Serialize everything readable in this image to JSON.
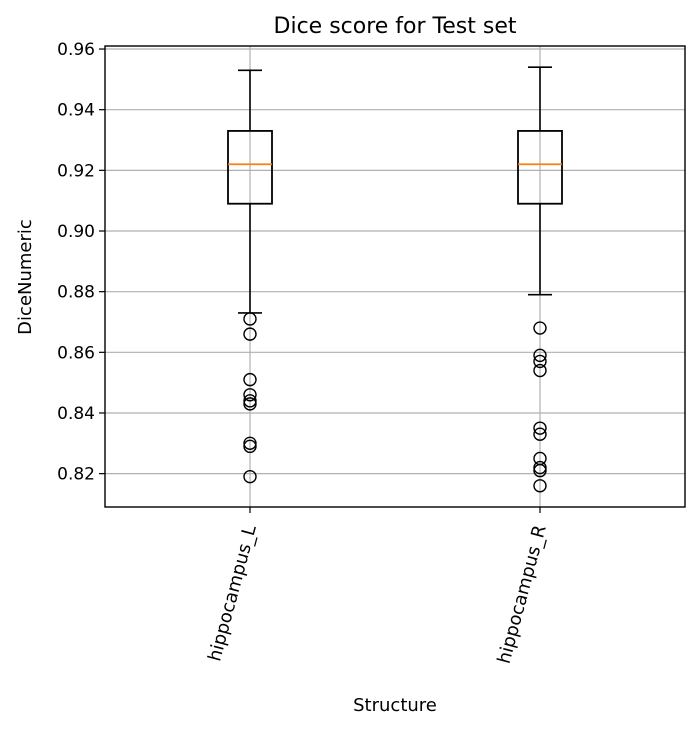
{
  "chart_data": {
    "type": "box",
    "title": "Dice score for Test set",
    "xlabel": "Structure",
    "ylabel": "DiceNumeric",
    "ylim": [
      0.809,
      0.961
    ],
    "yticks": [
      0.82,
      0.84,
      0.86,
      0.88,
      0.9,
      0.92,
      0.94,
      0.96
    ],
    "ytick_labels": [
      "0.82",
      "0.84",
      "0.86",
      "0.88",
      "0.90",
      "0.92",
      "0.94",
      "0.96"
    ],
    "grid": true,
    "categories": [
      "hippocampus_L",
      "hippocampus_R"
    ],
    "boxes": [
      {
        "name": "hippocampus_L",
        "whisker_low": 0.873,
        "q1": 0.909,
        "median": 0.922,
        "q3": 0.933,
        "whisker_high": 0.953,
        "outliers": [
          0.871,
          0.866,
          0.851,
          0.846,
          0.844,
          0.843,
          0.83,
          0.829,
          0.819
        ]
      },
      {
        "name": "hippocampus_R",
        "whisker_low": 0.879,
        "q1": 0.909,
        "median": 0.922,
        "q3": 0.933,
        "whisker_high": 0.954,
        "outliers": [
          0.868,
          0.859,
          0.857,
          0.854,
          0.835,
          0.833,
          0.825,
          0.822,
          0.821,
          0.816
        ]
      }
    ],
    "colors": {
      "box": "#000000",
      "median": "#ff7f0e",
      "grid": "#b0b0b0"
    }
  }
}
